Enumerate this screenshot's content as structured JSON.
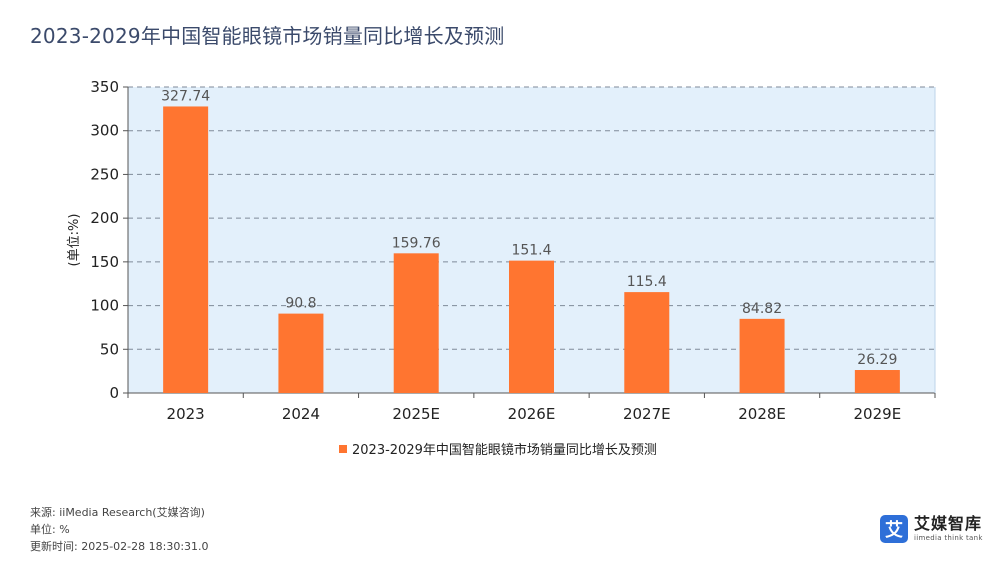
{
  "page": {
    "title": "2023-2029年中国智能眼镜市场销量同比增长及预测"
  },
  "chart_data": {
    "type": "bar",
    "categories": [
      "2023",
      "2024",
      "2025E",
      "2026E",
      "2027E",
      "2028E",
      "2029E"
    ],
    "series": [
      {
        "name": "2023-2029年中国智能眼镜市场销量同比增长及预测",
        "values": [
          327.74,
          90.8,
          159.76,
          151.4,
          115.4,
          84.82,
          26.29
        ],
        "color": "#ff7530"
      }
    ],
    "data_labels": [
      "327.74",
      "90.8",
      "159.76",
      "151.4",
      "115.4",
      "84.82",
      "26.29"
    ],
    "yticks": [
      0,
      50,
      100,
      150,
      200,
      250,
      300,
      350
    ],
    "ylim": [
      0,
      350
    ],
    "ylabel": "(单位:%)",
    "xlabel": "",
    "grid": true,
    "legend_position": "bottom-center",
    "plot_background": "#e3f0fb",
    "grid_color": "#7f8a99",
    "label_color": "#555555"
  },
  "footer": {
    "source": "来源: iiMedia Research(艾媒咨询)",
    "unit": "单位: %",
    "updated": "更新时间: 2025-02-28 18:30:31.0"
  },
  "logo": {
    "mark": "艾",
    "name_cn": "艾媒智库",
    "name_en": "iimedia think tank",
    "color": "#2e6fd8"
  }
}
